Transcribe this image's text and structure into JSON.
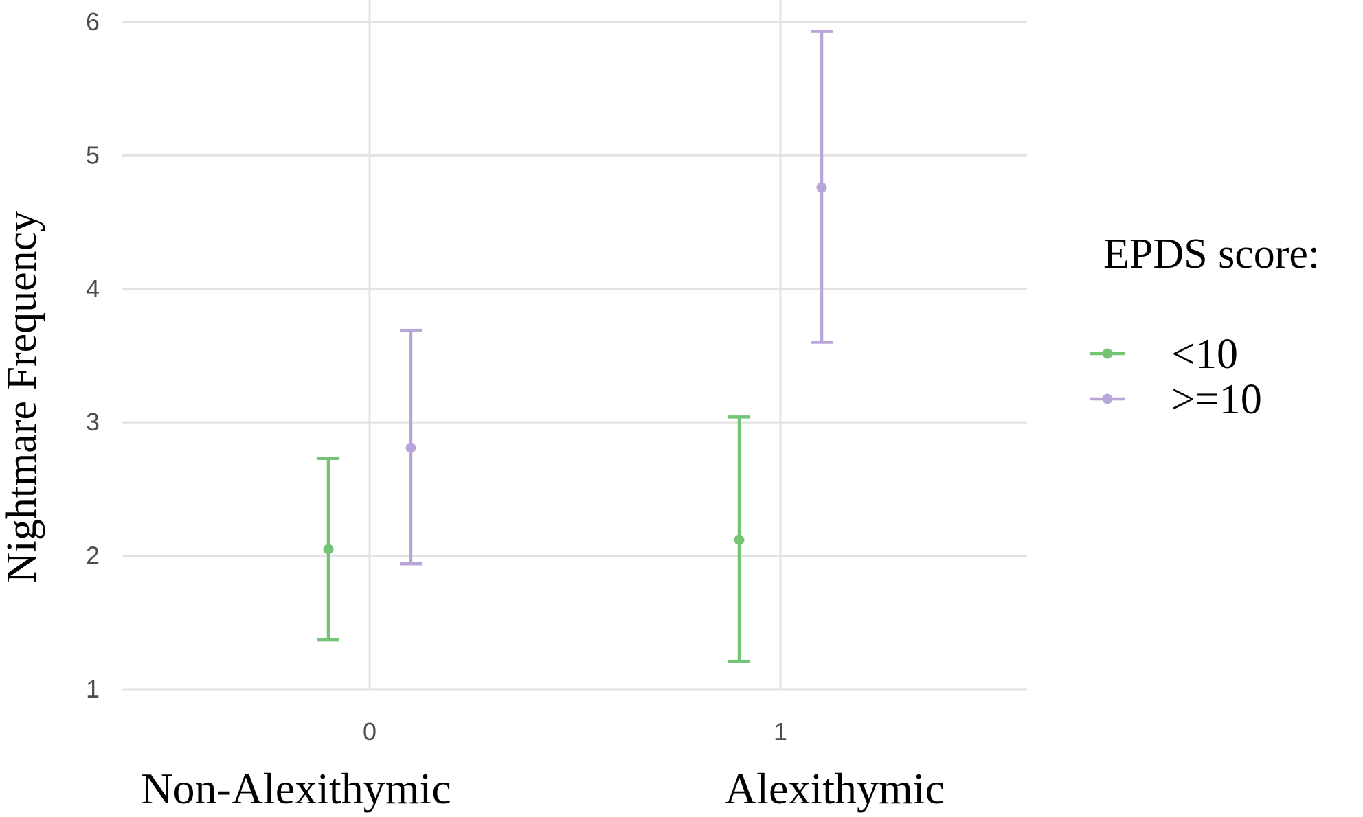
{
  "chart_data": {
    "type": "errorbar",
    "ylabel": "Nightmare Frequency",
    "ylim": [
      1,
      6
    ],
    "y_ticks": [
      "1",
      "2",
      "3",
      "4",
      "5",
      "6"
    ],
    "x_ticks": [
      "0",
      "1"
    ],
    "group_labels": [
      "Non-Alexithymic",
      "Alexithymic"
    ],
    "grid": true,
    "legend": {
      "title": "EPDS score:",
      "placement": "right"
    },
    "series": [
      {
        "name": "<10",
        "color": "#74c476",
        "points": [
          {
            "x": "0",
            "mean": 2.05,
            "lower": 1.37,
            "upper": 2.73
          },
          {
            "x": "1",
            "mean": 2.12,
            "lower": 1.21,
            "upper": 3.04
          }
        ]
      },
      {
        "name": ">=10",
        "color": "#b8a6d9",
        "points": [
          {
            "x": "0",
            "mean": 2.81,
            "lower": 1.94,
            "upper": 3.69
          },
          {
            "x": "1",
            "mean": 4.76,
            "lower": 3.6,
            "upper": 5.93
          }
        ]
      }
    ]
  }
}
